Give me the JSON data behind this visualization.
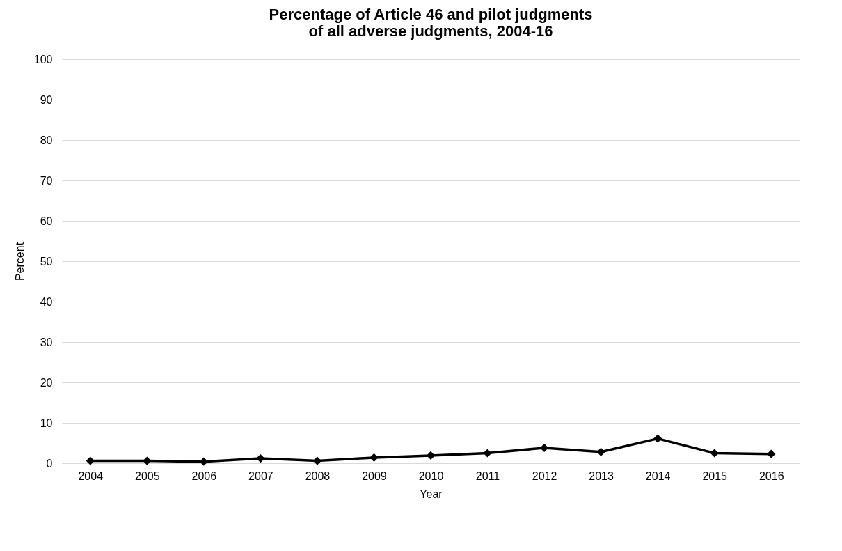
{
  "chart_data": {
    "type": "line",
    "title": "Percentage of Article 46 and pilot judgments\nof all adverse judgments, 2004-16",
    "xlabel": "Year",
    "ylabel": "Percent",
    "categories": [
      "2004",
      "2005",
      "2006",
      "2007",
      "2008",
      "2009",
      "2010",
      "2011",
      "2012",
      "2013",
      "2014",
      "2015",
      "2016"
    ],
    "series": [
      {
        "color": "#000000",
        "values": [
          0.6,
          0.6,
          0.4,
          1.2,
          0.6,
          1.4,
          1.9,
          2.5,
          3.8,
          2.8,
          6.1,
          2.5,
          2.3
        ]
      }
    ],
    "ylim": [
      0,
      100
    ],
    "yticks": [
      0,
      10,
      20,
      30,
      40,
      50,
      60,
      70,
      80,
      90,
      100
    ],
    "grid": "y",
    "marker": "diamond",
    "line_style": "solid",
    "legend": false
  }
}
